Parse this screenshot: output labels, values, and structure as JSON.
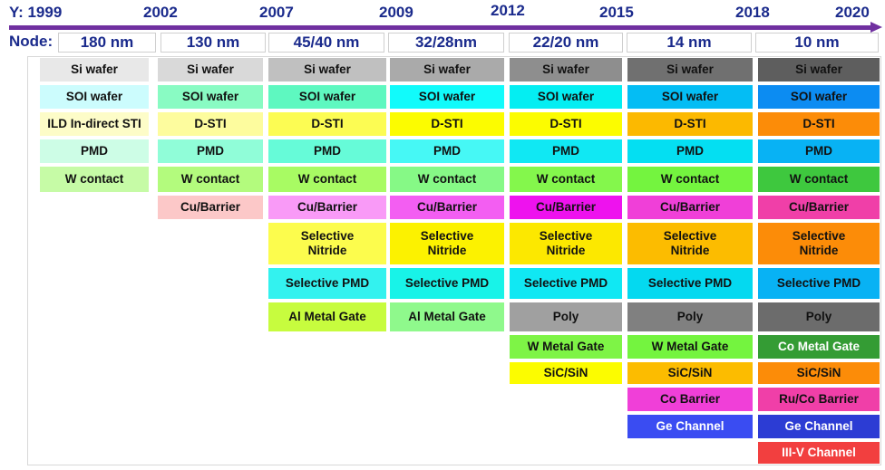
{
  "timeline": {
    "year_prefix": "Y:",
    "years": [
      "1999",
      "2002",
      "2007",
      "2009",
      "2012",
      "2015",
      "2018",
      "2020"
    ]
  },
  "nodes": {
    "label": "Node:",
    "values": [
      "180 nm",
      "130 nm",
      "45/40 nm",
      "32/28nm",
      "22/20 nm",
      "14 nm",
      "10 nm"
    ]
  },
  "columns": [
    {
      "node": "180 nm",
      "cells": [
        {
          "label": "Si wafer",
          "color": "#e8e8e8"
        },
        {
          "label": "SOI wafer",
          "color": "#ccfcfd"
        },
        {
          "label": "ILD In-direct STI",
          "color": "#fdfcc8"
        },
        {
          "label": "PMD",
          "color": "#cdfde6"
        },
        {
          "label": "W contact",
          "color": "#c6fba6"
        }
      ]
    },
    {
      "node": "130 nm",
      "cells": [
        {
          "label": "Si wafer",
          "color": "#d9d9d9"
        },
        {
          "label": "SOI wafer",
          "color": "#89fbc3"
        },
        {
          "label": "D-STI",
          "color": "#fdfc9e"
        },
        {
          "label": "PMD",
          "color": "#90fdd8"
        },
        {
          "label": "W contact",
          "color": "#b3fb7d"
        },
        {
          "label": "Cu/Barrier",
          "color": "#fcc8c8"
        }
      ]
    },
    {
      "node": "45/40 nm",
      "cells": [
        {
          "label": "Si wafer",
          "color": "#c0c0c0"
        },
        {
          "label": "SOI wafer",
          "color": "#5ef8c0"
        },
        {
          "label": "D-STI",
          "color": "#fcfc53"
        },
        {
          "label": "PMD",
          "color": "#66fbd8"
        },
        {
          "label": "W contact",
          "color": "#a8fb63"
        },
        {
          "label": "Cu/Barrier",
          "color": "#f99af7"
        },
        {
          "label": "Selective\nNitride",
          "color": "#fcfc4d"
        },
        {
          "label": "Selective PMD",
          "color": "#33f2ef"
        },
        {
          "label": "Al Metal Gate",
          "color": "#c7fc3e"
        }
      ]
    },
    {
      "node": "32/28nm",
      "cells": [
        {
          "label": "Si wafer",
          "color": "#aaaaaa"
        },
        {
          "label": "SOI wafer",
          "color": "#11fbfb"
        },
        {
          "label": "D-STI",
          "color": "#fcfc00"
        },
        {
          "label": "PMD",
          "color": "#46f8f5"
        },
        {
          "label": "W contact",
          "color": "#86f986"
        },
        {
          "label": "Cu/Barrier",
          "color": "#f35ef2"
        },
        {
          "label": "Selective\nNitride",
          "color": "#fcf200"
        },
        {
          "label": "Selective PMD",
          "color": "#18f3e8"
        },
        {
          "label": "Al Metal Gate",
          "color": "#8ff98c"
        }
      ]
    },
    {
      "node": "22/20 nm",
      "cells": [
        {
          "label": "Si wafer",
          "color": "#8e8e8e"
        },
        {
          "label": "SOI wafer",
          "color": "#04eef2"
        },
        {
          "label": "D-STI",
          "color": "#fcfc00"
        },
        {
          "label": "PMD",
          "color": "#10e8f3"
        },
        {
          "label": "W contact",
          "color": "#84f74c"
        },
        {
          "label": "Cu/Barrier",
          "color": "#ee12ee"
        },
        {
          "label": "Selective\nNitride",
          "color": "#fce800"
        },
        {
          "label": "Selective PMD",
          "color": "#10e8f3"
        },
        {
          "label": "Poly",
          "color": "#a0a0a0"
        },
        {
          "label": "W Metal Gate",
          "color": "#7ef446"
        },
        {
          "label": "SiC/SiN",
          "color": "#fcfc00"
        }
      ]
    },
    {
      "node": "14 nm",
      "cells": [
        {
          "label": "Si wafer",
          "color": "#707070"
        },
        {
          "label": "SOI wafer",
          "color": "#04bdf4"
        },
        {
          "label": "D-STI",
          "color": "#fcb900"
        },
        {
          "label": "PMD",
          "color": "#04dff2"
        },
        {
          "label": "W contact",
          "color": "#74f43f"
        },
        {
          "label": "Cu/Barrier",
          "color": "#f03fd8"
        },
        {
          "label": "Selective\nNitride",
          "color": "#fcbc00"
        },
        {
          "label": "Selective PMD",
          "color": "#04d9f0"
        },
        {
          "label": "Poly",
          "color": "#808080"
        },
        {
          "label": "W Metal Gate",
          "color": "#74f43f"
        },
        {
          "label": "SiC/SiN",
          "color": "#fcbc00"
        },
        {
          "label": "Co Barrier",
          "color": "#f03fd8"
        },
        {
          "label": "Ge Channel",
          "color": "#3a4cf2"
        }
      ]
    },
    {
      "node": "10 nm",
      "cells": [
        {
          "label": "Si wafer",
          "color": "#5e5e5e"
        },
        {
          "label": "SOI wafer",
          "color": "#0c8cf2"
        },
        {
          "label": "D-STI",
          "color": "#fc8c08"
        },
        {
          "label": "PMD",
          "color": "#08b2f4"
        },
        {
          "label": "W contact",
          "color": "#3ec83e"
        },
        {
          "label": "Cu/Barrier",
          "color": "#f03fa8"
        },
        {
          "label": "Selective\nNitride",
          "color": "#fc8c08"
        },
        {
          "label": "Selective PMD",
          "color": "#08b2f4"
        },
        {
          "label": "Poly",
          "color": "#6c6c6c"
        },
        {
          "label": "Co Metal Gate",
          "color": "#349c34"
        },
        {
          "label": "SiC/SiN",
          "color": "#fc8c08"
        },
        {
          "label": "Ru/Co Barrier",
          "color": "#f03fa8"
        },
        {
          "label": "Ge Channel",
          "color": "#2c3cd4"
        },
        {
          "label": "III-V Channel",
          "color": "#f23f3f"
        }
      ]
    }
  ]
}
